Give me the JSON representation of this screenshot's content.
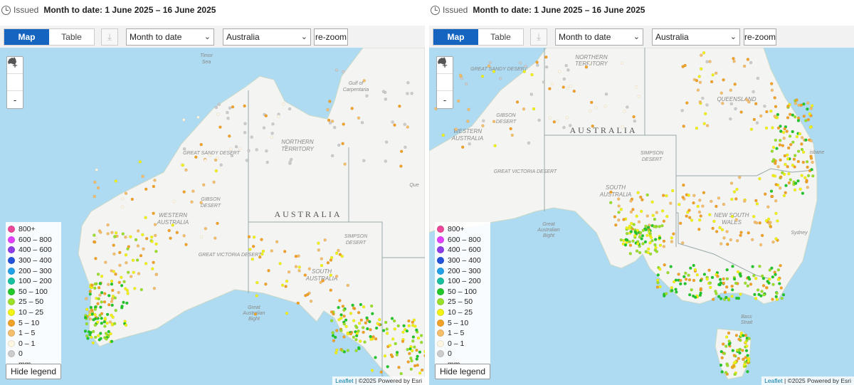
{
  "colors": {
    "accent": "#1565c0",
    "sea": "#aedbf1",
    "land": "#f4f4f2"
  },
  "legend_items": [
    {
      "label": "800+",
      "color": "#ec4899"
    },
    {
      "label": "600 – 800",
      "color": "#e040fb"
    },
    {
      "label": "400 – 600",
      "color": "#8e3de6"
    },
    {
      "label": "300 – 400",
      "color": "#2353d8"
    },
    {
      "label": "200 – 300",
      "color": "#23a0e8"
    },
    {
      "label": "100 – 200",
      "color": "#19c0a0"
    },
    {
      "label": "50 – 100",
      "color": "#22c82a"
    },
    {
      "label": "25 – 50",
      "color": "#9ae02a"
    },
    {
      "label": "10 – 25",
      "color": "#f2f214"
    },
    {
      "label": "5 – 10",
      "color": "#f2a226"
    },
    {
      "label": "1 – 5",
      "color": "#f5be6a"
    },
    {
      "label": "0 – 1",
      "color": "#fdf6e3"
    },
    {
      "label": "0",
      "color": "#cccccc"
    },
    {
      "label": "mm",
      "color": ""
    }
  ],
  "panels": [
    {
      "issued_label": "Issued",
      "issued_date": "Month to date: 1 June 2025 – 16 June 2025",
      "tab_map": "Map",
      "tab_table": "Table",
      "period_select": "Month to date",
      "region_select": "Australia",
      "rezoom_label": "re-zoom",
      "zoom_in": "+",
      "zoom_out": "-",
      "hide_legend": "Hide legend",
      "attribution_link": "Leaflet",
      "attribution_text": "| ©2025 Powered by Esri",
      "map_labels": {
        "timor_sea": "Timor\nSea",
        "gulf": "Gulf of\nCarpentaria",
        "great_sandy": "GREAT SANDY DESERT",
        "nt": "NORTHERN\nTERRITORY",
        "gibson": "GIBSON\nDESERT",
        "wa": "WESTERN\nAUSTRALIA",
        "australia": "AUSTRALIA",
        "simpson": "SIMPSON\nDESERT",
        "gvd": "GREAT VICTORIA DESERT",
        "sa": "SOUTH\nAUSTRALIA",
        "bight": "Great\nAustralian\nBight",
        "qld": "Que"
      }
    },
    {
      "issued_label": "Issued",
      "issued_date": "Month to date: 1 June 2025 – 16 June 2025",
      "tab_map": "Map",
      "tab_table": "Table",
      "period_select": "Month to date",
      "region_select": "Australia",
      "rezoom_label": "re-zoom",
      "zoom_in": "+",
      "zoom_out": "-",
      "hide_legend": "Hide legend",
      "attribution_link": "Leaflet",
      "attribution_text": "| ©2025 Powered by Esri",
      "map_labels": {
        "great_sandy": "GREAT SANDY DESERT",
        "nt": "NORTHERN\nTERRITORY",
        "qld": "QUEENSLAND",
        "gibson": "GIBSON\nDESERT",
        "wa": "WESTERN\nAUSTRALIA",
        "australia": "AUSTRALIA",
        "simpson": "SIMPSON\nDESERT",
        "gvd": "GREAT VICTORIA DESERT",
        "sa": "SOUTH\nAUSTRALIA",
        "bight": "Great\nAustralian\nBight",
        "nsw": "NEW SOUTH\nWALES",
        "brisbane": "isbane",
        "sydney": "Sydney",
        "bass": "Bass\nStrait"
      }
    }
  ]
}
